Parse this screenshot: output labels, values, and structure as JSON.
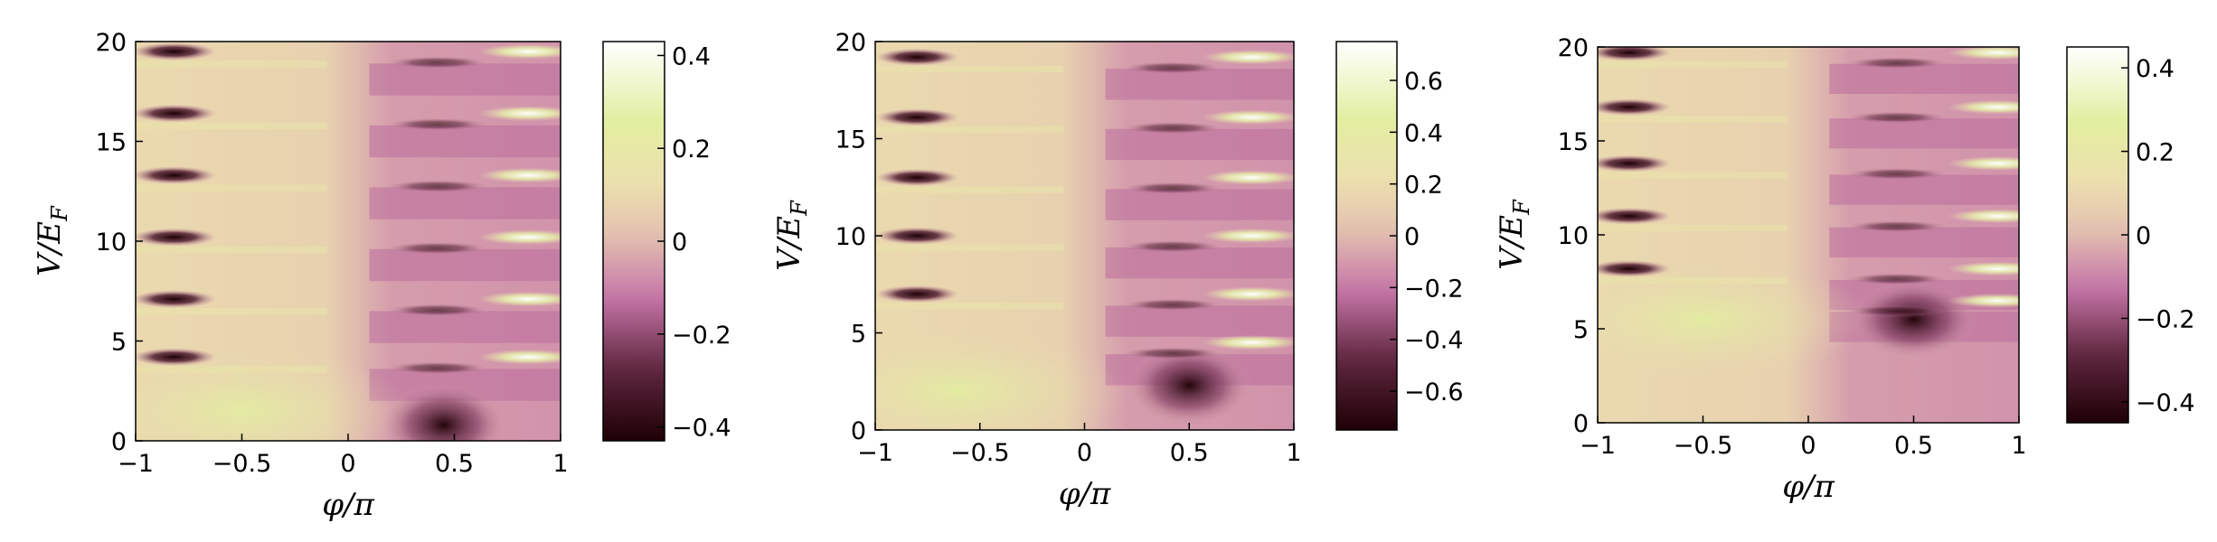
{
  "chart_data": [
    {
      "type": "heatmap",
      "xlabel": "φ/π",
      "ylabel": "V/E_F",
      "x_range": [
        -1,
        1
      ],
      "y_range": [
        0,
        20
      ],
      "xticks": [
        -1,
        -0.5,
        0,
        0.5,
        1
      ],
      "xtick_labels": [
        "−1",
        "−0.5",
        "0",
        "0.5",
        "1"
      ],
      "yticks": [
        0,
        5,
        10,
        15,
        20
      ],
      "ytick_labels": [
        "0",
        "5",
        "10",
        "15",
        "20"
      ],
      "colorbar": {
        "range": [
          -0.43,
          0.43
        ],
        "ticks": [
          -0.4,
          -0.2,
          0,
          0.2,
          0.4
        ],
        "tick_labels": [
          "−0.4",
          "−0.2",
          "0",
          "0.2",
          "0.4"
        ]
      },
      "features": {
        "dark_streaks_left": {
          "x_center": -0.82,
          "y_values": [
            19.5,
            16.4,
            13.3,
            10.2,
            7.1,
            4.2
          ],
          "value": -0.4
        },
        "bright_streaks_right": {
          "x_center": 0.85,
          "y_values": [
            19.5,
            16.4,
            13.3,
            10.2,
            7.1,
            4.2
          ],
          "value": 0.4
        },
        "dark_blob": {
          "x": 0.45,
          "y": 0.8,
          "value": -0.4
        },
        "bright_region": {
          "x": -0.5,
          "y": 1.5,
          "value": 0.25
        }
      }
    },
    {
      "type": "heatmap",
      "xlabel": "φ/π",
      "ylabel": "V/E_F",
      "x_range": [
        -1,
        1
      ],
      "y_range": [
        0,
        20
      ],
      "xticks": [
        -1,
        -0.5,
        0,
        0.5,
        1
      ],
      "xtick_labels": [
        "−1",
        "−0.5",
        "0",
        "0.5",
        "1"
      ],
      "yticks": [
        0,
        5,
        10,
        15,
        20
      ],
      "ytick_labels": [
        "0",
        "5",
        "10",
        "15",
        "20"
      ],
      "colorbar": {
        "range": [
          -0.75,
          0.75
        ],
        "ticks": [
          -0.6,
          -0.4,
          -0.2,
          0,
          0.2,
          0.4,
          0.6
        ],
        "tick_labels": [
          "−0.6",
          "−0.4",
          "−0.2",
          "0",
          "0.2",
          "0.4",
          "0.6"
        ]
      },
      "features": {
        "dark_streaks_left": {
          "x_center": -0.8,
          "y_values": [
            19.2,
            16.1,
            13.0,
            10.0,
            7.0
          ],
          "value": -0.7
        },
        "bright_streaks_right": {
          "x_center": 0.8,
          "y_values": [
            19.2,
            16.1,
            13.0,
            10.0,
            7.0,
            4.5
          ],
          "value": 0.5
        },
        "dark_blob": {
          "x": 0.5,
          "y": 2.3,
          "value": -0.5
        },
        "bright_region": {
          "x": -0.6,
          "y": 2.0,
          "value": 0.3
        }
      }
    },
    {
      "type": "heatmap",
      "xlabel": "φ/π",
      "ylabel": "V/E_F",
      "x_range": [
        -1,
        1
      ],
      "y_range": [
        0,
        20
      ],
      "xticks": [
        -1,
        -0.5,
        0,
        0.5,
        1
      ],
      "xtick_labels": [
        "−1",
        "−0.5",
        "0",
        "0.5",
        "1"
      ],
      "yticks": [
        0,
        5,
        10,
        15,
        20
      ],
      "ytick_labels": [
        "0",
        "5",
        "10",
        "15",
        "20"
      ],
      "colorbar": {
        "range": [
          -0.45,
          0.45
        ],
        "ticks": [
          -0.4,
          -0.2,
          0,
          0.2,
          0.4
        ],
        "tick_labels": [
          "−0.4",
          "−0.2",
          "0",
          "0.2",
          "0.4"
        ]
      },
      "features": {
        "dark_streaks_left": {
          "x_center": -0.85,
          "y_values": [
            19.7,
            16.8,
            13.8,
            11.0,
            8.2
          ],
          "value": -0.4
        },
        "bright_streaks_right": {
          "x_center": 0.9,
          "y_values": [
            19.7,
            16.8,
            13.8,
            11.0,
            8.2,
            6.5
          ],
          "value": 0.4
        },
        "dark_blob": {
          "x": 0.5,
          "y": 5.5,
          "value": -0.35
        },
        "bright_region": {
          "x": -0.5,
          "y": 5.5,
          "value": 0.3
        }
      }
    }
  ]
}
